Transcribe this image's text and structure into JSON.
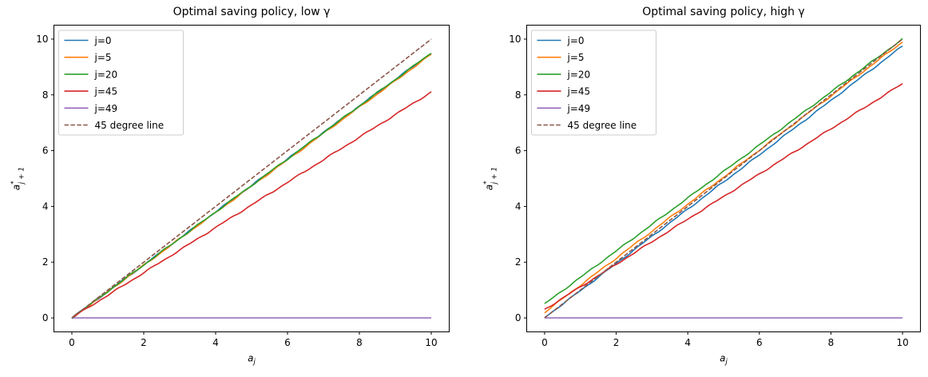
{
  "figure": {
    "background_color": "#ffffff",
    "axes_color": "#000000",
    "legend_border_color": "#cccccc"
  },
  "chart_data": [
    {
      "type": "line",
      "title": "Optimal saving policy, low γ",
      "xlabel": {
        "base": "a",
        "sub": "j"
      },
      "ylabel": {
        "base": "a",
        "sup": "*",
        "sub": "j + 1"
      },
      "xlim": [
        -0.5,
        10.5
      ],
      "ylim": [
        -0.5,
        10.5
      ],
      "xticks": [
        0,
        2,
        4,
        6,
        8,
        10
      ],
      "yticks": [
        0,
        2,
        4,
        6,
        8,
        10
      ],
      "grid": false,
      "legend_position": "upper left",
      "x": [
        0,
        0.5,
        1,
        1.5,
        2,
        2.5,
        3,
        3.5,
        4,
        4.5,
        5,
        5.5,
        6,
        6.5,
        7,
        7.5,
        8,
        8.5,
        9,
        9.5,
        10
      ],
      "series": [
        {
          "name": "j=0",
          "color": "#1f77b4",
          "dash": false,
          "wiggle": true,
          "values": [
            0,
            0.48,
            0.95,
            1.43,
            1.9,
            2.38,
            2.85,
            3.33,
            3.8,
            4.28,
            4.75,
            5.23,
            5.7,
            6.18,
            6.65,
            7.13,
            7.6,
            8.08,
            8.55,
            9.03,
            9.5
          ]
        },
        {
          "name": "j=5",
          "color": "#ff7f0e",
          "dash": false,
          "wiggle": true,
          "values": [
            0,
            0.47,
            0.94,
            1.42,
            1.89,
            2.36,
            2.84,
            3.31,
            3.78,
            4.25,
            4.73,
            5.2,
            5.67,
            6.14,
            6.62,
            7.09,
            7.56,
            8.03,
            8.5,
            8.98,
            9.45
          ]
        },
        {
          "name": "j=20",
          "color": "#2ca02c",
          "dash": false,
          "wiggle": true,
          "values": [
            0,
            0.48,
            0.95,
            1.43,
            1.9,
            2.38,
            2.85,
            3.33,
            3.8,
            4.28,
            4.75,
            5.23,
            5.7,
            6.18,
            6.65,
            7.13,
            7.6,
            8.08,
            8.55,
            9.03,
            9.5
          ]
        },
        {
          "name": "j=45",
          "color": "#d62728",
          "dash": false,
          "wiggle": true,
          "values": [
            0,
            0.41,
            0.81,
            1.22,
            1.62,
            2.03,
            2.43,
            2.84,
            3.24,
            3.65,
            4.05,
            4.46,
            4.86,
            5.27,
            5.67,
            6.08,
            6.48,
            6.89,
            7.29,
            7.7,
            8.1
          ]
        },
        {
          "name": "j=49",
          "color": "#9467bd",
          "dash": false,
          "wiggle": false,
          "values": [
            0,
            0,
            0,
            0,
            0,
            0,
            0,
            0,
            0,
            0,
            0,
            0,
            0,
            0,
            0,
            0,
            0,
            0,
            0,
            0,
            0
          ]
        },
        {
          "name": "45 degree line",
          "color": "#8c564b",
          "dash": true,
          "wiggle": false,
          "values": [
            0,
            0.5,
            1,
            1.5,
            2,
            2.5,
            3,
            3.5,
            4,
            4.5,
            5,
            5.5,
            6,
            6.5,
            7,
            7.5,
            8,
            8.5,
            9,
            9.5,
            10
          ]
        }
      ]
    },
    {
      "type": "line",
      "title": "Optimal saving policy, high γ",
      "xlabel": {
        "base": "a",
        "sub": "j"
      },
      "ylabel": {
        "base": "a",
        "sup": "*",
        "sub": "j + 1"
      },
      "xlim": [
        -0.5,
        10.5
      ],
      "ylim": [
        -0.5,
        10.5
      ],
      "xticks": [
        0,
        2,
        4,
        6,
        8,
        10
      ],
      "yticks": [
        0,
        2,
        4,
        6,
        8,
        10
      ],
      "grid": false,
      "legend_position": "upper left",
      "x": [
        0,
        0.5,
        1,
        1.5,
        2,
        2.5,
        3,
        3.5,
        4,
        4.5,
        5,
        5.5,
        6,
        6.5,
        7,
        7.5,
        8,
        8.5,
        9,
        9.5,
        10
      ],
      "series": [
        {
          "name": "j=0",
          "color": "#1f77b4",
          "dash": false,
          "wiggle": true,
          "values": [
            0.02,
            0.49,
            0.98,
            1.46,
            1.95,
            2.44,
            2.93,
            3.41,
            3.9,
            4.39,
            4.88,
            5.36,
            5.85,
            6.34,
            6.83,
            7.31,
            7.8,
            8.29,
            8.78,
            9.26,
            9.75
          ]
        },
        {
          "name": "j=5",
          "color": "#ff7f0e",
          "dash": false,
          "wiggle": true,
          "values": [
            0.2,
            0.69,
            1.17,
            1.66,
            2.14,
            2.63,
            3.11,
            3.6,
            4.08,
            4.57,
            5.05,
            5.54,
            6.02,
            6.51,
            6.99,
            7.48,
            7.96,
            8.45,
            8.93,
            9.42,
            9.9
          ]
        },
        {
          "name": "j=20",
          "color": "#2ca02c",
          "dash": false,
          "wiggle": true,
          "values": [
            0.5,
            0.98,
            1.45,
            1.93,
            2.4,
            2.88,
            3.35,
            3.83,
            4.3,
            4.78,
            5.25,
            5.73,
            6.2,
            6.68,
            7.15,
            7.63,
            8.1,
            8.58,
            9.05,
            9.53,
            10.0
          ]
        },
        {
          "name": "j=45",
          "color": "#d62728",
          "dash": false,
          "wiggle": true,
          "values": [
            0.3,
            0.71,
            1.11,
            1.52,
            1.92,
            2.33,
            2.73,
            3.14,
            3.54,
            3.95,
            4.35,
            4.76,
            5.16,
            5.57,
            5.97,
            6.38,
            6.78,
            7.19,
            7.59,
            8.0,
            8.4
          ]
        },
        {
          "name": "j=49",
          "color": "#9467bd",
          "dash": false,
          "wiggle": false,
          "values": [
            0,
            0,
            0,
            0,
            0,
            0,
            0,
            0,
            0,
            0,
            0,
            0,
            0,
            0,
            0,
            0,
            0,
            0,
            0,
            0,
            0
          ]
        },
        {
          "name": "45 degree line",
          "color": "#8c564b",
          "dash": true,
          "wiggle": false,
          "values": [
            0,
            0.5,
            1,
            1.5,
            2,
            2.5,
            3,
            3.5,
            4,
            4.5,
            5,
            5.5,
            6,
            6.5,
            7,
            7.5,
            8,
            8.5,
            9,
            9.5,
            10
          ]
        }
      ]
    }
  ]
}
